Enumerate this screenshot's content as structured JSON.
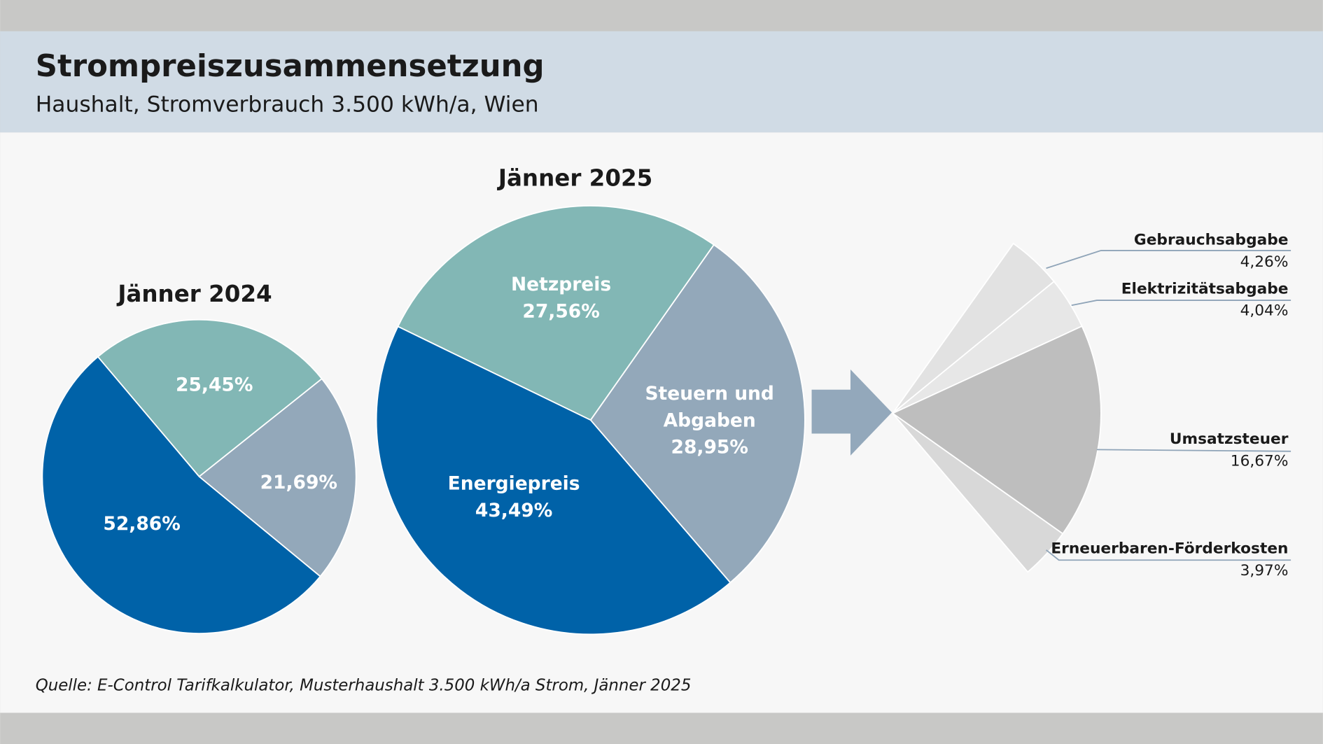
{
  "header": {
    "title": "Strompreiszusammensetzung",
    "subtitle": "Haushalt, Stromverbrauch 3.500 kWh/a, Wien"
  },
  "source": "Quelle: E-Control Tarifkalkulator, Musterhaushalt 3.500 kWh/a Strom, Jänner 2025",
  "chart_data": [
    {
      "type": "pie",
      "title": "Jänner 2024",
      "values": [
        25.45,
        21.69,
        52.86
      ],
      "value_labels": [
        "25,45%",
        "21,69%",
        "52,86%"
      ],
      "colors": [
        "#82b7b5",
        "#93a8ba",
        "#0062a8"
      ]
    },
    {
      "type": "pie",
      "title": "Jänner 2025",
      "categories": [
        "Netzpreis",
        "Steuern und Abgaben",
        "Energiepreis"
      ],
      "values": [
        27.56,
        28.95,
        43.49
      ],
      "value_labels": [
        "27,56%",
        "28,95%",
        "43,49%"
      ],
      "colors": [
        "#82b7b5",
        "#93a8ba",
        "#0062a8"
      ]
    },
    {
      "type": "fan",
      "categories": [
        "Gebrauchsabgabe",
        "Elektrizitätsabgabe",
        "Umsatzsteuer",
        "Erneuerbaren-Förderkosten"
      ],
      "values": [
        4.26,
        4.04,
        16.67,
        3.97
      ],
      "value_labels": [
        "4,26%",
        "4,04%",
        "16,67%",
        "3,97%"
      ],
      "colors": [
        "#e2e2e2",
        "#e7e7e7",
        "#bebebe",
        "#d8d8d8"
      ]
    }
  ]
}
